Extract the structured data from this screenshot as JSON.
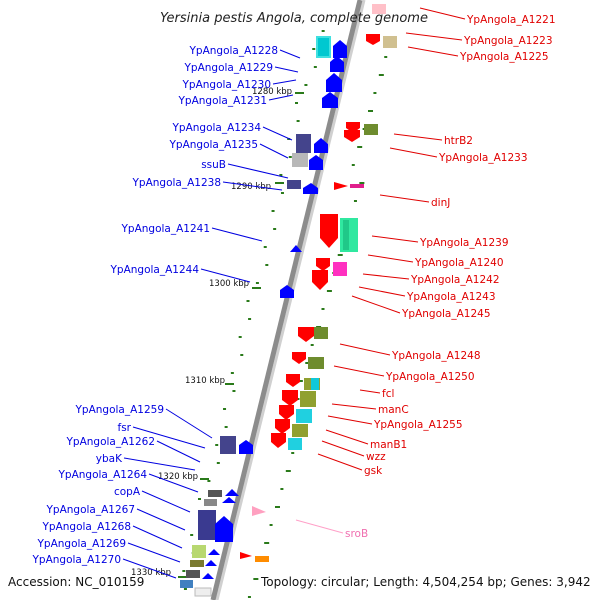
{
  "title": "Yersinia pestis Angola, complete genome",
  "footer": {
    "accession": "Accession: NC_010159",
    "summary": "Topology: circular; Length: 4,504,254 bp; Genes: 3,942"
  },
  "kbp_ticks": [
    "1280 kbp",
    "1290 kbp",
    "1300 kbp",
    "1310 kbp",
    "1320 kbp",
    "1330 kbp"
  ],
  "left_labels": [
    "YpAngola_A1228",
    "YpAngola_A1229",
    "YpAngola_A1230",
    "YpAngola_A1231",
    "YpAngola_A1234",
    "YpAngola_A1235",
    "ssuB",
    "YpAngola_A1238",
    "YpAngola_A1241",
    "YpAngola_A1244",
    "YpAngola_A1259",
    "fsr",
    "YpAngola_A1262",
    "ybaK",
    "YpAngola_A1264",
    "copA",
    "YpAngola_A1267",
    "YpAngola_A1268",
    "YpAngola_A1269",
    "YpAngola_A1270"
  ],
  "right_labels": [
    "YpAngola_A1221",
    "YpAngola_A1223",
    "YpAngola_A1225",
    "htrB2",
    "YpAngola_A1233",
    "dinJ",
    "YpAngola_A1239",
    "YpAngola_A1240",
    "YpAngola_A1242",
    "YpAngola_A1243",
    "YpAngola_A1245",
    "YpAngola_A1248",
    "YpAngola_A1250",
    "fcl",
    "manC",
    "YpAngola_A1255",
    "manB1",
    "wzz",
    "gsk",
    "sroB"
  ],
  "colors": {
    "backbone": "#8c8c8c",
    "forward_label": "#0000e0",
    "reverse_label": "#e00000",
    "rna_label": "#f070b0",
    "gc_skew": "#2a7a1a"
  }
}
